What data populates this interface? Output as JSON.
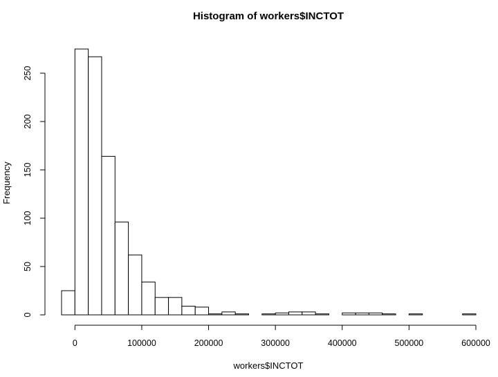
{
  "chart_data": {
    "type": "bar",
    "title": "Histogram of workers$INCTOT",
    "xlabel": "workers$INCTOT",
    "ylabel": "Frequency",
    "bin_width": 20000,
    "bin_starts": [
      -20000,
      0,
      20000,
      40000,
      60000,
      80000,
      100000,
      120000,
      140000,
      160000,
      180000,
      200000,
      220000,
      240000,
      260000,
      280000,
      300000,
      320000,
      340000,
      360000,
      380000,
      400000,
      420000,
      440000,
      460000,
      480000,
      500000,
      520000,
      540000,
      560000,
      580000
    ],
    "values": [
      25,
      275,
      267,
      164,
      96,
      62,
      34,
      18,
      18,
      9,
      8,
      1,
      3,
      1,
      0,
      1,
      2,
      3,
      3,
      1,
      0,
      2,
      2,
      2,
      1,
      0,
      1,
      0,
      0,
      0,
      1
    ],
    "xlim": [
      -20000,
      600000
    ],
    "ylim": [
      0,
      275
    ],
    "x_ticks": [
      0,
      100000,
      200000,
      300000,
      400000,
      500000,
      600000
    ],
    "x_tick_labels": [
      "0",
      "100000",
      "200000",
      "300000",
      "400000",
      "500000",
      "600000"
    ],
    "y_ticks": [
      0,
      50,
      100,
      150,
      200,
      250
    ],
    "y_tick_labels": [
      "0",
      "50",
      "100",
      "150",
      "200",
      "250"
    ],
    "grid": false,
    "legend": "none"
  }
}
